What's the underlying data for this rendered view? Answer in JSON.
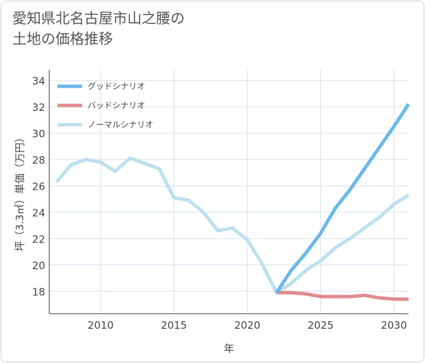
{
  "chart_data": {
    "type": "line",
    "title_lines": [
      "愛知県北名古屋市山之腰の",
      "土地の価格推移"
    ],
    "xlabel": "年",
    "ylabel": "坪（3.3㎡）単価（万円）",
    "xlim": [
      2006.5,
      2031
    ],
    "ylim": [
      16.3,
      34.8
    ],
    "x_ticks": [
      2010,
      2015,
      2020,
      2025,
      2030
    ],
    "y_ticks": [
      18,
      20,
      22,
      24,
      26,
      28,
      30,
      32,
      34
    ],
    "grid": true,
    "legend_position": "top-left",
    "series": [
      {
        "name": "グッドシナリオ",
        "color": "#6ab8ea",
        "x": [
          2022,
          2023,
          2024,
          2025,
          2026,
          2027,
          2028,
          2029,
          2030,
          2031
        ],
        "y": [
          17.9,
          19.6,
          20.9,
          22.4,
          24.3,
          25.7,
          27.3,
          28.9,
          30.5,
          32.2
        ]
      },
      {
        "name": "バッドシナリオ",
        "color": "#e08a8f",
        "x": [
          2022,
          2023,
          2024,
          2025,
          2026,
          2027,
          2028,
          2029,
          2030,
          2031
        ],
        "y": [
          17.9,
          17.9,
          17.8,
          17.6,
          17.6,
          17.6,
          17.7,
          17.5,
          17.4,
          17.4
        ]
      },
      {
        "name": "ノーマルシナリオ",
        "color": "#bde0ee",
        "x": [
          2007,
          2008,
          2009,
          2010,
          2011,
          2012,
          2013,
          2014,
          2015,
          2016,
          2017,
          2018,
          2019,
          2020,
          2021,
          2022,
          2023,
          2024,
          2025,
          2026,
          2027,
          2028,
          2029,
          2030,
          2031
        ],
        "y": [
          26.3,
          27.6,
          28.0,
          27.8,
          27.1,
          28.1,
          27.7,
          27.3,
          25.1,
          24.9,
          24.0,
          22.6,
          22.8,
          21.9,
          20.1,
          17.9,
          18.6,
          19.6,
          20.3,
          21.3,
          22.0,
          22.8,
          23.6,
          24.6,
          25.3
        ]
      }
    ]
  }
}
